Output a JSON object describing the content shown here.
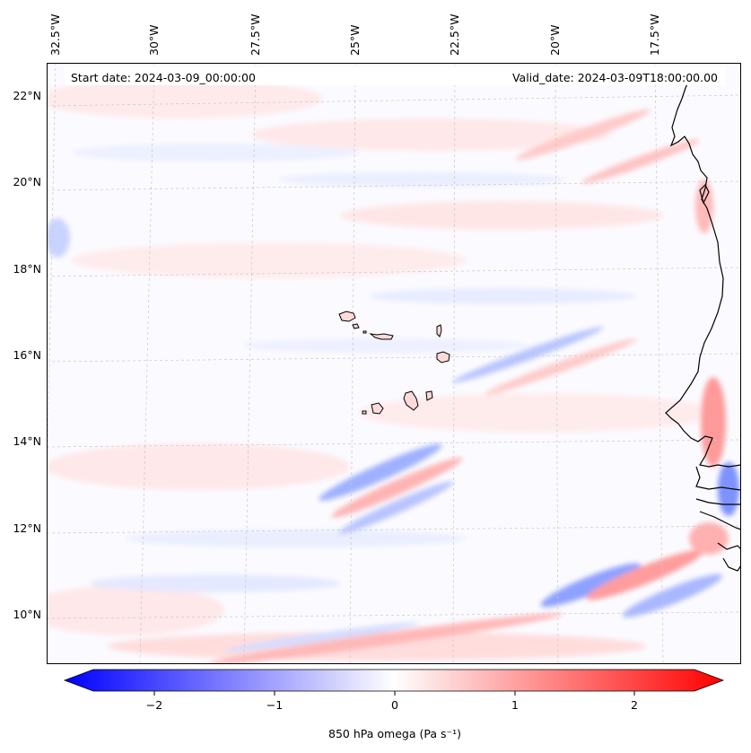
{
  "map": {
    "start_date_label": "Start date: 2024-03-09_00:00:00",
    "valid_date_label": "Valid_date: 2024-03-09T18:00:00.00",
    "lon_labels": [
      "32.5°W",
      "30°W",
      "27.5°W",
      "25°W",
      "22.5°W",
      "20°W",
      "17.5°W"
    ],
    "lat_labels": [
      "22°N",
      "20°N",
      "18°N",
      "16°N",
      "14°N",
      "12°N",
      "10°N"
    ],
    "islands": [
      "Santo Antão",
      "São Vicente",
      "Santa Luzia",
      "São Nicolau",
      "Sal",
      "Boa Vista",
      "Maio",
      "Santiago",
      "Fogo",
      "Brava"
    ]
  },
  "colorbar": {
    "label": "850 hPa omega (Pa s⁻¹)",
    "ticks": [
      "−2",
      "−1",
      "0",
      "1",
      "2"
    ],
    "min_color": "#0000ff",
    "mid_color": "#ffffff",
    "max_color": "#ff0000"
  },
  "colors": {
    "coastline": "#000000",
    "gridline": "#c8c8c8"
  }
}
